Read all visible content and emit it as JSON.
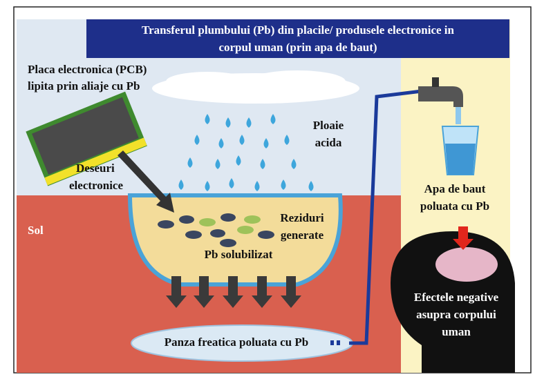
{
  "title": {
    "lines": [
      "Transferul plumbului (Pb) din placile/ produsele electronice in",
      "corpul uman (prin apa de baut)"
    ]
  },
  "labels": {
    "pcb": [
      "Placa electronica (PCB)",
      "lipita prin aliaje cu Pb"
    ],
    "waste": [
      "Deseuri",
      "electronice"
    ],
    "rain": [
      "Ploaie",
      "acida"
    ],
    "soil": "Sol",
    "residues": [
      "Reziduri",
      "generate"
    ],
    "dissolved": "Pb solubilizat",
    "aquifer": "Panza freatica poluata cu Pb",
    "water": [
      "Apa de baut",
      "poluata cu Pb"
    ],
    "effects": [
      "Efectele negative",
      "asupra corpului",
      "uman"
    ]
  }
}
